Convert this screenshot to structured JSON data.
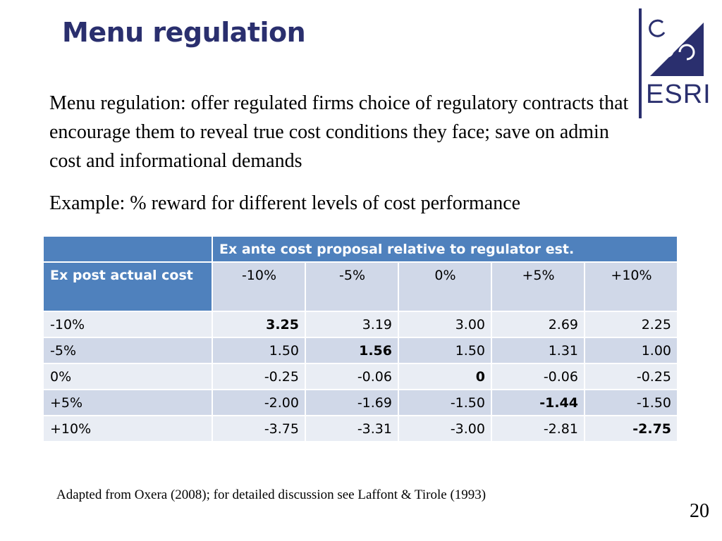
{
  "slide": {
    "title": "Menu regulation",
    "paragraph1": "Menu regulation: offer regulated firms choice of regulatory contracts that encourage them to reveal true cost conditions they face; save on admin cost and informational demands",
    "paragraph2": "Example: % reward for different levels of cost performance",
    "footnote": "Adapted from Oxera (2008); for detailed discussion see Laffont & Tirole (1993)",
    "page_number": "20"
  },
  "logo": {
    "text": "ESRI",
    "color": "#2a2f6e"
  },
  "table": {
    "top_left": "",
    "group_header": "Ex ante cost proposal relative to regulator est.",
    "row_header_label": "Ex post actual cost",
    "columns": [
      "-10%",
      "-5%",
      "0%",
      "+5%",
      "+10%"
    ],
    "rows": [
      {
        "label": "-10%",
        "values": [
          "3.25",
          "3.19",
          "3.00",
          "2.69",
          "2.25"
        ]
      },
      {
        "label": "-5%",
        "values": [
          "1.50",
          "1.56",
          "1.50",
          "1.31",
          "1.00"
        ]
      },
      {
        "label": "0%",
        "values": [
          "-0.25",
          "-0.06",
          "0",
          "-0.06",
          "-0.25"
        ]
      },
      {
        "label": "+5%",
        "values": [
          "-2.00",
          "-1.69",
          "-1.50",
          "-1.44",
          "-1.50"
        ]
      },
      {
        "label": "+10%",
        "values": [
          "-3.75",
          "-3.31",
          "-3.00",
          "-2.81",
          "-2.75"
        ]
      }
    ]
  },
  "colors": {
    "title": "#2a2f6e",
    "header_blue": "#4f81bd",
    "row_dark": "#d0d8e8",
    "row_light": "#e9edf4"
  }
}
